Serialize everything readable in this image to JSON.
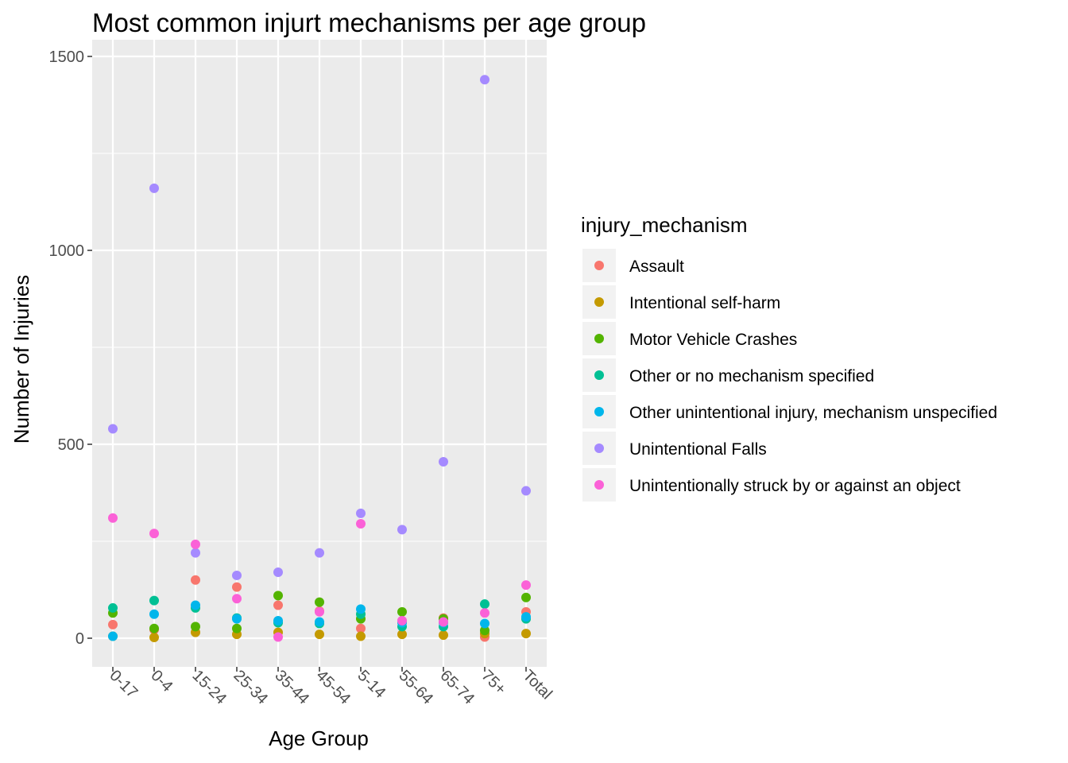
{
  "chart_data": {
    "type": "scatter",
    "title": "Most common injurt mechanisms per age group",
    "xlabel": "Age Group",
    "ylabel": "Number of Injuries",
    "categories": [
      "0-17",
      "0-4",
      "15-24",
      "25-34",
      "35-44",
      "45-54",
      "5-14",
      "55-64",
      "65-74",
      "75+",
      "Total"
    ],
    "ylim": [
      -70,
      1520
    ],
    "yticks": [
      0,
      500,
      1000,
      1500
    ],
    "grid": true,
    "legend_position": "right",
    "legend_title": "injury_mechanism",
    "series": [
      {
        "name": "Assault",
        "color": "#F8766D",
        "values": [
          35,
          22,
          150,
          132,
          85,
          70,
          25,
          45,
          52,
          3,
          68
        ]
      },
      {
        "name": "Intentional self-harm",
        "color": "#C49A00",
        "values": [
          5,
          2,
          15,
          10,
          15,
          10,
          5,
          10,
          8,
          12,
          12
        ]
      },
      {
        "name": "Motor Vehicle Crashes",
        "color": "#53B400",
        "values": [
          65,
          25,
          30,
          25,
          110,
          93,
          50,
          68,
          50,
          20,
          105
        ]
      },
      {
        "name": "Other or no mechanism specified",
        "color": "#00C094",
        "values": [
          78,
          97,
          78,
          52,
          40,
          38,
          62,
          30,
          30,
          88,
          50
        ]
      },
      {
        "name": "Other unintentional injury, mechanism unspecified",
        "color": "#00B6EB",
        "values": [
          5,
          62,
          85,
          50,
          45,
          42,
          75,
          40,
          40,
          38,
          55
        ]
      },
      {
        "name": "Unintentional Falls",
        "color": "#A58AFF",
        "values": [
          540,
          1160,
          220,
          162,
          170,
          220,
          322,
          280,
          455,
          1440,
          380
        ]
      },
      {
        "name": "Unintentionally struck by or against an object",
        "color": "#FB61D7",
        "values": [
          310,
          270,
          242,
          102,
          3,
          68,
          295,
          45,
          42,
          65,
          137
        ]
      }
    ]
  }
}
